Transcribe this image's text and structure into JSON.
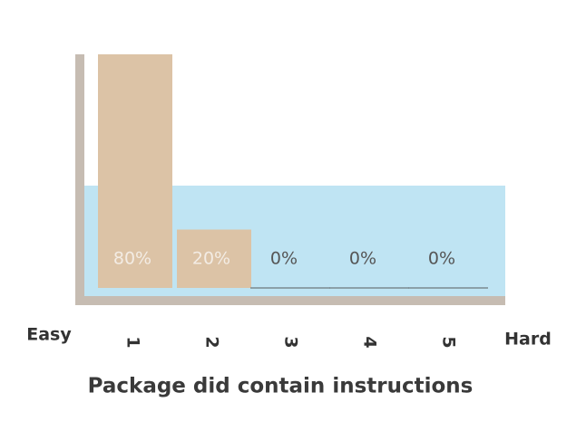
{
  "chart_data": {
    "type": "bar",
    "title": "Package did contain instructions",
    "annotations": [
      "Easy",
      "Hard"
    ],
    "categories": [
      "1",
      "2",
      "3",
      "4",
      "5"
    ],
    "values": [
      80,
      20,
      0,
      0,
      0
    ],
    "value_labels": [
      "80%",
      "20%",
      "0%",
      "0%",
      "0%"
    ],
    "color": "#dcc3a6"
  }
}
